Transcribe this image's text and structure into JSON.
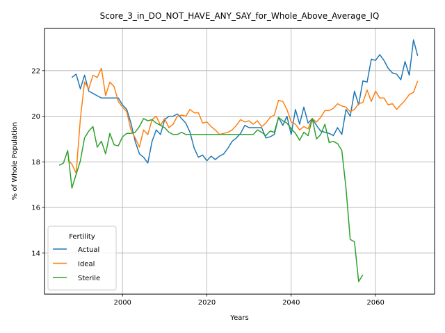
{
  "chart_data": {
    "type": "line",
    "title": "Score_3_in_DO_NOT_HAVE_ANY_SAY_for_Whole_Above_Average_IQ",
    "xlabel": "Years",
    "ylabel": "% of Whole Population",
    "xlim": [
      1981.5,
      2074
    ],
    "ylim": [
      12.2,
      23.85
    ],
    "xticks": [
      2000,
      2020,
      2040,
      2060
    ],
    "yticks": [
      14,
      16,
      18,
      20,
      22
    ],
    "grid": true,
    "legend": {
      "title": "Fertility",
      "placement": "lower-left"
    },
    "series": [
      {
        "name": "Actual",
        "color": "#1f77b4",
        "x": [
          1988,
          1989,
          1990,
          1991,
          1992,
          1993,
          1994,
          1995,
          1996,
          1997,
          1998,
          1999,
          2000,
          2001,
          2002,
          2003,
          2004,
          2005,
          2006,
          2007,
          2008,
          2009,
          2010,
          2011,
          2012,
          2013,
          2014,
          2015,
          2016,
          2017,
          2018,
          2019,
          2020,
          2021,
          2022,
          2023,
          2024,
          2025,
          2026,
          2027,
          2028,
          2029,
          2030,
          2031,
          2032,
          2033,
          2034,
          2035,
          2036,
          2037,
          2038,
          2039,
          2040,
          2041,
          2042,
          2043,
          2044,
          2045,
          2046,
          2047,
          2048,
          2049,
          2050,
          2051,
          2052,
          2053,
          2054,
          2055,
          2056,
          2057,
          2058,
          2059,
          2060,
          2061,
          2062,
          2063,
          2064,
          2065,
          2066,
          2067,
          2068,
          2069,
          2070
        ],
        "y": [
          21.7,
          21.85,
          21.2,
          21.8,
          21.1,
          21.0,
          20.9,
          20.8,
          20.8,
          20.8,
          20.8,
          20.8,
          20.5,
          20.3,
          19.7,
          18.9,
          18.35,
          18.2,
          17.95,
          18.9,
          19.4,
          19.2,
          19.85,
          20.0,
          20.0,
          20.1,
          19.9,
          19.7,
          19.3,
          18.6,
          18.2,
          18.3,
          18.05,
          18.25,
          18.1,
          18.25,
          18.35,
          18.6,
          18.9,
          19.05,
          19.25,
          19.6,
          19.5,
          19.5,
          19.5,
          19.5,
          19.05,
          19.1,
          19.2,
          19.95,
          19.6,
          20.0,
          19.2,
          20.3,
          19.65,
          20.4,
          19.7,
          19.9,
          19.6,
          19.35,
          19.3,
          19.25,
          19.15,
          19.5,
          19.2,
          20.3,
          20.0,
          21.1,
          20.5,
          21.55,
          21.5,
          22.5,
          22.45,
          22.7,
          22.45,
          22.1,
          21.9,
          21.85,
          21.6,
          22.4,
          21.8,
          23.35,
          22.65
        ]
      },
      {
        "name": "Ideal",
        "color": "#ff7f0e",
        "x": [
          1987,
          1988,
          1989,
          1990,
          1991,
          1992,
          1993,
          1994,
          1995,
          1996,
          1997,
          1998,
          1999,
          2000,
          2001,
          2002,
          2003,
          2004,
          2005,
          2006,
          2007,
          2008,
          2009,
          2010,
          2011,
          2012,
          2013,
          2014,
          2015,
          2016,
          2017,
          2018,
          2019,
          2020,
          2021,
          2022,
          2023,
          2024,
          2025,
          2026,
          2027,
          2028,
          2029,
          2030,
          2031,
          2032,
          2033,
          2034,
          2035,
          2036,
          2037,
          2038,
          2039,
          2040,
          2041,
          2042,
          2043,
          2044,
          2045,
          2046,
          2047,
          2048,
          2049,
          2050,
          2051,
          2052,
          2053,
          2054,
          2055,
          2056,
          2057,
          2058,
          2059,
          2060,
          2061,
          2062,
          2063,
          2064,
          2065,
          2066,
          2067,
          2068,
          2069,
          2070
        ],
        "y": [
          18.1,
          17.9,
          17.5,
          19.9,
          21.5,
          21.2,
          21.8,
          21.7,
          22.1,
          20.9,
          21.5,
          21.3,
          20.65,
          20.4,
          20.2,
          19.4,
          19.05,
          18.65,
          19.4,
          19.2,
          19.85,
          20.0,
          19.6,
          19.9,
          19.5,
          19.65,
          20.0,
          20.05,
          20.0,
          20.3,
          20.15,
          20.15,
          19.7,
          19.75,
          19.55,
          19.4,
          19.2,
          19.25,
          19.3,
          19.4,
          19.6,
          19.85,
          19.75,
          19.8,
          19.65,
          19.8,
          19.55,
          19.7,
          19.95,
          20.05,
          20.7,
          20.65,
          20.3,
          19.75,
          19.65,
          19.4,
          19.55,
          19.45,
          19.9,
          19.75,
          19.95,
          20.25,
          20.25,
          20.35,
          20.55,
          20.45,
          20.4,
          20.2,
          20.3,
          20.55,
          20.6,
          21.15,
          20.65,
          21.1,
          20.8,
          20.8,
          20.5,
          20.55,
          20.3,
          20.5,
          20.7,
          20.95,
          21.05,
          21.55
        ]
      },
      {
        "name": "Sterile",
        "color": "#2ca02c",
        "x": [
          1985,
          1986,
          1987,
          1988,
          1989,
          1990,
          1991,
          1992,
          1993,
          1994,
          1995,
          1996,
          1997,
          1998,
          1999,
          2000,
          2001,
          2002,
          2003,
          2004,
          2005,
          2006,
          2007,
          2008,
          2009,
          2010,
          2011,
          2012,
          2013,
          2014,
          2015,
          2016,
          2017,
          2018,
          2019,
          2020,
          2021,
          2022,
          2023,
          2024,
          2025,
          2026,
          2027,
          2028,
          2029,
          2030,
          2031,
          2032,
          2033,
          2034,
          2035,
          2036,
          2037,
          2038,
          2039,
          2040,
          2041,
          2042,
          2043,
          2044,
          2045,
          2046,
          2047,
          2048,
          2049,
          2050,
          2051,
          2052,
          2053,
          2054,
          2055,
          2056,
          2057
        ],
        "y": [
          17.85,
          17.95,
          18.5,
          16.85,
          17.45,
          18.05,
          19.05,
          19.35,
          19.55,
          18.65,
          18.9,
          18.35,
          19.25,
          18.75,
          18.7,
          19.1,
          19.25,
          19.25,
          19.3,
          19.55,
          19.9,
          19.8,
          19.85,
          19.7,
          19.6,
          19.5,
          19.3,
          19.2,
          19.2,
          19.3,
          19.2,
          19.2,
          19.2,
          19.2,
          19.2,
          19.2,
          19.2,
          19.2,
          19.2,
          19.2,
          19.2,
          19.2,
          19.2,
          19.2,
          19.2,
          19.2,
          19.2,
          19.4,
          19.3,
          19.15,
          19.35,
          19.3,
          19.95,
          19.8,
          19.7,
          19.45,
          19.25,
          18.95,
          19.3,
          19.15,
          19.9,
          19.0,
          19.2,
          19.65,
          18.85,
          18.9,
          18.8,
          18.5,
          16.85,
          14.6,
          14.5,
          12.75,
          13.05
        ]
      }
    ]
  }
}
